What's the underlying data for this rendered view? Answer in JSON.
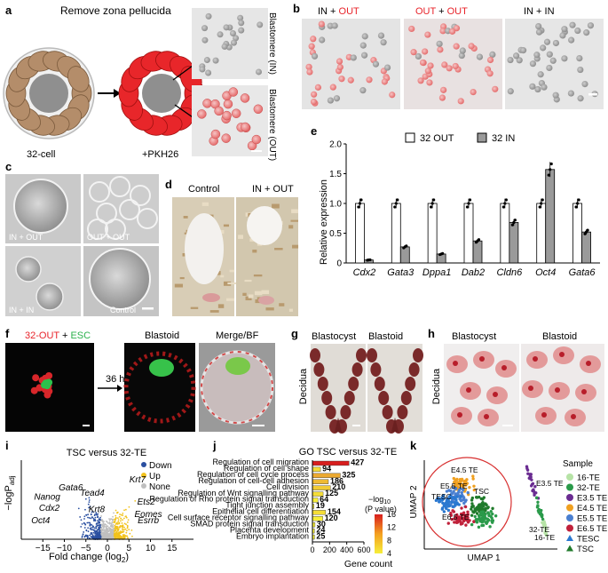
{
  "panel_labels": {
    "a": "a",
    "b": "b",
    "c": "c",
    "d": "d",
    "e": "e",
    "f": "f",
    "g": "g",
    "h": "h",
    "i": "i",
    "j": "j",
    "k": "k"
  },
  "panel_a": {
    "title": "Remove zona pellucida",
    "label_32cell": "32-cell",
    "label_pkh": "+PKH26",
    "label_in": "Blastomere (IN)",
    "label_out": "Blastomere (OUT)"
  },
  "panel_b": {
    "img1_a": "IN + ",
    "img1_b": "OUT",
    "img2_a": "OUT",
    "img2_b": " + ",
    "img2_c": "OUT",
    "img3": "IN + IN"
  },
  "panel_c": {
    "tl": "IN + OUT",
    "tr": "OUT + OUT",
    "bl": "IN + IN",
    "br": "Control"
  },
  "panel_d": {
    "left": "Control",
    "right": "IN + OUT"
  },
  "panel_f": {
    "lbl_out": "32-OUT",
    "lbl_plus": " + ",
    "lbl_esc": "ESC",
    "time": "36 h",
    "blastoid": "Blastoid",
    "merge": "Merge/BF"
  },
  "panel_g": {
    "blastocyst": "Blastocyst",
    "blastoid": "Blastoid",
    "decidua": "Decidua"
  },
  "panel_h": {
    "blastocyst": "Blastocyst",
    "blastoid": "Blastoid",
    "decidua": "Decidua"
  },
  "colors": {
    "out_red": "#e8232a",
    "esc_green": "#2bb24c",
    "bar_white": "#ffffff",
    "bar_grey": "#9a9a9a",
    "down_blue": "#2a4fa0",
    "up_yellow": "#f2c21b",
    "none_grey": "#bfbfbf"
  },
  "chart_data": [
    {
      "panel": "e",
      "type": "bar",
      "ylabel": "Relative expression",
      "ylim": [
        0,
        2
      ],
      "yticks": [
        0,
        0.5,
        1.0,
        1.5,
        2.0
      ],
      "ytick_labels": [
        "0",
        "0.5",
        "1.0",
        "1.5",
        "2.0"
      ],
      "categories": [
        "Cdx2",
        "Gata3",
        "Dppa1",
        "Dab2",
        "Cldn6",
        "Oct4",
        "Gata6"
      ],
      "series": [
        {
          "name": "32 OUT",
          "values": [
            1.0,
            1.0,
            1.0,
            1.0,
            1.0,
            1.0,
            1.0
          ]
        },
        {
          "name": "32 IN",
          "values": [
            0.05,
            0.27,
            0.15,
            0.37,
            0.68,
            1.57,
            0.52
          ]
        }
      ],
      "legend_position": "top"
    },
    {
      "panel": "i",
      "type": "scatter",
      "title": "TSC versus 32-TE",
      "xlabel": "Fold change (log",
      "xlabel_sub": "2",
      "ylabel": "−logP",
      "ylabel_sub": "adj",
      "xlim": [
        -20,
        20
      ],
      "xticks": [
        -15,
        -10,
        -5,
        0,
        5,
        10,
        15
      ],
      "xtick_labels": [
        "−15",
        "−10",
        "−5",
        "0",
        "5",
        "10",
        "15"
      ],
      "legend": [
        "Down",
        "Up",
        "None"
      ],
      "legend_position": "top-right",
      "gene_labels": [
        {
          "gene": "Gata6",
          "x": -8.5,
          "y": 0.62
        },
        {
          "gene": "Tead4",
          "x": -3.5,
          "y": 0.55
        },
        {
          "gene": "Nanog",
          "x": -14,
          "y": 0.5
        },
        {
          "gene": "Krt7",
          "x": 7.0,
          "y": 0.72
        },
        {
          "gene": "Ets2",
          "x": 9.0,
          "y": 0.44
        },
        {
          "gene": "Cdx2",
          "x": -13.5,
          "y": 0.36
        },
        {
          "gene": "Krt8",
          "x": -2.5,
          "y": 0.34
        },
        {
          "gene": "Eomes",
          "x": 9.5,
          "y": 0.28
        },
        {
          "gene": "Oct4",
          "x": -15.5,
          "y": 0.2
        },
        {
          "gene": "Esrrb",
          "x": 9.5,
          "y": 0.2
        }
      ]
    },
    {
      "panel": "j",
      "type": "bar",
      "orientation": "horizontal",
      "title": "GO TSC versus 32-TE",
      "xlabel": "Gene count",
      "xlim": [
        0,
        600
      ],
      "xticks": [
        0,
        200,
        400,
        600
      ],
      "categories": [
        "Regulation of cell migration",
        "Regulation of cell shape",
        "Regulation of cell cycle process",
        "Regulation of cell-cell adhesion",
        "Cell division",
        "Regulation of Wnt signalling pathway",
        "Regulation of Rho protein signal transduction",
        "Tight junction assembly",
        "Epithelial cell differentiation",
        "Cell surface receptor signalling pathway",
        "SMAD protein signal transduction",
        "Placenta development",
        "Embryo implantation"
      ],
      "values": [
        427,
        94,
        325,
        186,
        210,
        125,
        64,
        19,
        154,
        120,
        30,
        24,
        25
      ],
      "neglog10_p": [
        16,
        5,
        8,
        7,
        6,
        5,
        4,
        4,
        5,
        4,
        4,
        4,
        4
      ],
      "colorbar_label": "−log",
      "colorbar_label_sub": "10",
      "colorbar_label2": "(P value)",
      "colorbar_ticks": [
        4,
        8,
        12,
        16
      ]
    },
    {
      "panel": "k",
      "type": "scatter",
      "xlabel": "UMAP 1",
      "ylabel": "UMAP 2",
      "legend_title": "Sample",
      "legend": [
        {
          "name": "16-TE",
          "color": "#b6e3a6",
          "marker": "circle"
        },
        {
          "name": "32-TE",
          "color": "#2a9a4a",
          "marker": "circle"
        },
        {
          "name": "E3.5 TE",
          "color": "#6a2c91",
          "marker": "circle"
        },
        {
          "name": "E4.5 TE",
          "color": "#f0a020",
          "marker": "circle"
        },
        {
          "name": "E5.5 TE",
          "color": "#4a7fd0",
          "marker": "circle"
        },
        {
          "name": "E6.5 TE",
          "color": "#c0203a",
          "marker": "circle"
        },
        {
          "name": "TESC",
          "color": "#2a78d0",
          "marker": "triangle"
        },
        {
          "name": "TSC",
          "color": "#1f7a2a",
          "marker": "triangle"
        }
      ],
      "cluster_labels": [
        "E4.5 TE",
        "E5.5 TE",
        "TESC",
        "TSC",
        "E6.5 TE",
        "E3.5 TE",
        "32-TE",
        "16-TE"
      ]
    }
  ]
}
